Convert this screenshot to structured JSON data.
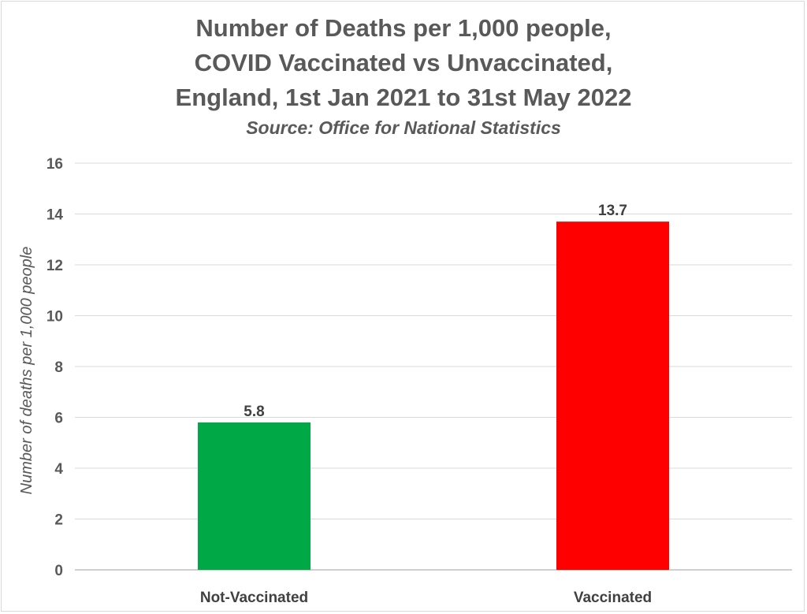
{
  "chart_data": {
    "type": "bar",
    "title_lines": [
      "Number of Deaths per 1,000 people,",
      "COVID Vaccinated vs Unvaccinated,",
      "England, 1st Jan 2021 to 31st May 2022"
    ],
    "subtitle": "Source: Office for National Statistics",
    "categories": [
      "Not-Vaccinated",
      "Vaccinated"
    ],
    "values": [
      5.8,
      13.7
    ],
    "data_labels": [
      "5.8",
      "13.7"
    ],
    "bar_colors": [
      "#00a846",
      "#ff0000"
    ],
    "xlabel": "",
    "ylabel": "Number of deaths per 1,000 people",
    "ylim": [
      0,
      16
    ],
    "yticks": [
      0,
      2,
      4,
      6,
      8,
      10,
      12,
      14,
      16
    ],
    "grid": true,
    "legend": "none"
  }
}
